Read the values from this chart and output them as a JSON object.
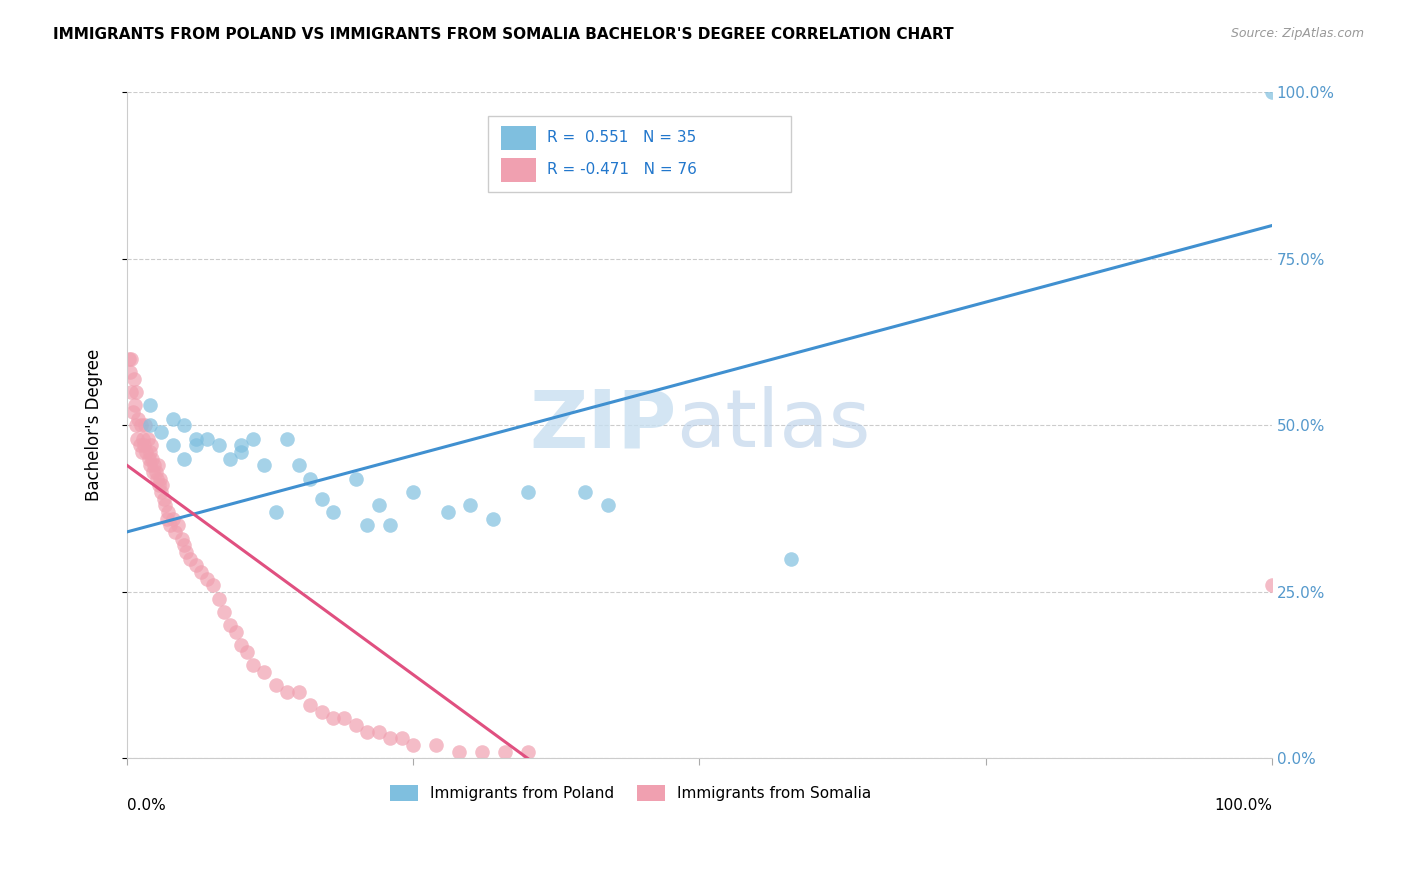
{
  "title": "IMMIGRANTS FROM POLAND VS IMMIGRANTS FROM SOMALIA BACHELOR'S DEGREE CORRELATION CHART",
  "source": "Source: ZipAtlas.com",
  "ylabel": "Bachelor's Degree",
  "xlim": [
    0,
    1.0
  ],
  "ylim": [
    0,
    1.0
  ],
  "ytick_values": [
    0.0,
    0.25,
    0.5,
    0.75,
    1.0
  ],
  "ytick_labels": [
    "0.0%",
    "25.0%",
    "50.0%",
    "75.0%",
    "100.0%"
  ],
  "legend_poland_r": "0.551",
  "legend_poland_n": "35",
  "legend_somalia_r": "-0.471",
  "legend_somalia_n": "76",
  "poland_color": "#7fbfdf",
  "somalia_color": "#f0a0b0",
  "poland_line_color": "#4090d0",
  "somalia_line_color": "#e05080",
  "poland_line_x0": 0.0,
  "poland_line_y0": 0.34,
  "poland_line_x1": 1.0,
  "poland_line_y1": 0.8,
  "somalia_line_x0": 0.0,
  "somalia_line_y0": 0.44,
  "somalia_line_x1": 0.35,
  "somalia_line_y1": 0.0,
  "poland_points_x": [
    0.02,
    0.02,
    0.03,
    0.04,
    0.04,
    0.05,
    0.05,
    0.06,
    0.06,
    0.07,
    0.08,
    0.09,
    0.1,
    0.1,
    0.11,
    0.12,
    0.13,
    0.14,
    0.15,
    0.16,
    0.17,
    0.18,
    0.2,
    0.21,
    0.22,
    0.23,
    0.25,
    0.28,
    0.3,
    0.32,
    0.35,
    0.4,
    0.42,
    0.58,
    1.0
  ],
  "poland_points_y": [
    0.53,
    0.5,
    0.49,
    0.51,
    0.47,
    0.5,
    0.45,
    0.47,
    0.48,
    0.48,
    0.47,
    0.45,
    0.46,
    0.47,
    0.48,
    0.44,
    0.37,
    0.48,
    0.44,
    0.42,
    0.39,
    0.37,
    0.42,
    0.35,
    0.38,
    0.35,
    0.4,
    0.37,
    0.38,
    0.36,
    0.4,
    0.4,
    0.38,
    0.3,
    1.0
  ],
  "somalia_points_x": [
    0.002,
    0.003,
    0.004,
    0.004,
    0.005,
    0.006,
    0.007,
    0.008,
    0.008,
    0.009,
    0.01,
    0.011,
    0.012,
    0.013,
    0.014,
    0.015,
    0.016,
    0.017,
    0.018,
    0.019,
    0.02,
    0.02,
    0.021,
    0.022,
    0.023,
    0.024,
    0.025,
    0.026,
    0.027,
    0.028,
    0.029,
    0.03,
    0.031,
    0.032,
    0.033,
    0.035,
    0.036,
    0.038,
    0.04,
    0.042,
    0.045,
    0.048,
    0.05,
    0.052,
    0.055,
    0.06,
    0.065,
    0.07,
    0.075,
    0.08,
    0.085,
    0.09,
    0.095,
    0.1,
    0.105,
    0.11,
    0.12,
    0.13,
    0.14,
    0.15,
    0.16,
    0.17,
    0.18,
    0.19,
    0.2,
    0.21,
    0.22,
    0.23,
    0.24,
    0.25,
    0.27,
    0.29,
    0.31,
    0.33,
    0.35,
    1.0
  ],
  "somalia_points_y": [
    0.6,
    0.58,
    0.6,
    0.55,
    0.52,
    0.57,
    0.53,
    0.55,
    0.5,
    0.48,
    0.51,
    0.47,
    0.5,
    0.46,
    0.48,
    0.47,
    0.5,
    0.46,
    0.48,
    0.45,
    0.46,
    0.44,
    0.47,
    0.45,
    0.43,
    0.44,
    0.43,
    0.42,
    0.44,
    0.41,
    0.42,
    0.4,
    0.41,
    0.39,
    0.38,
    0.36,
    0.37,
    0.35,
    0.36,
    0.34,
    0.35,
    0.33,
    0.32,
    0.31,
    0.3,
    0.29,
    0.28,
    0.27,
    0.26,
    0.24,
    0.22,
    0.2,
    0.19,
    0.17,
    0.16,
    0.14,
    0.13,
    0.11,
    0.1,
    0.1,
    0.08,
    0.07,
    0.06,
    0.06,
    0.05,
    0.04,
    0.04,
    0.03,
    0.03,
    0.02,
    0.02,
    0.01,
    0.01,
    0.01,
    0.01,
    0.26
  ]
}
